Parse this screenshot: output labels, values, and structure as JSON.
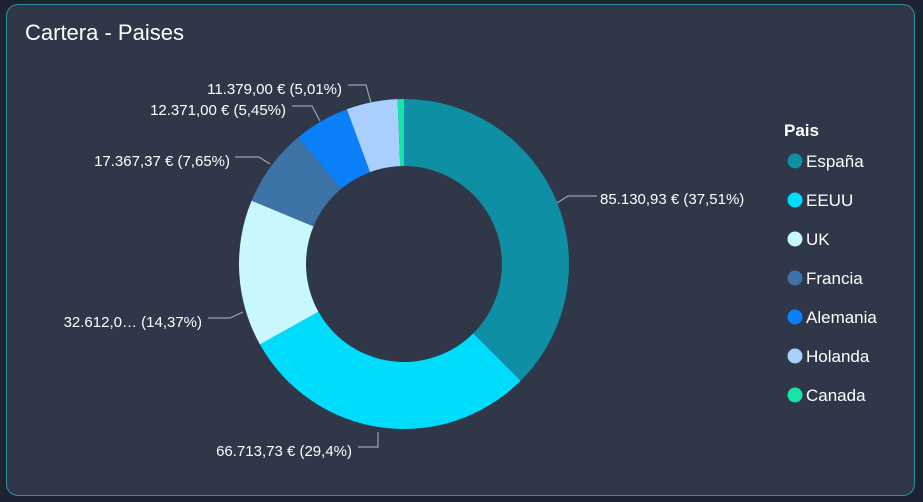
{
  "title": "Cartera - Paises",
  "chart_data": {
    "type": "pie",
    "subtype": "donut",
    "title": "Cartera - Paises",
    "legend": {
      "title": "Pais",
      "position": "right"
    },
    "slices": [
      {
        "name": "España",
        "value": 85130.93,
        "percent": 37.51,
        "label": "85.130,93 € (37,51%)",
        "color": "#0e8fa3"
      },
      {
        "name": "EEUU",
        "value": 66713.73,
        "percent": 29.4,
        "label": "66.713,73 € (29,4%)",
        "color": "#00ddfc"
      },
      {
        "name": "UK",
        "value": 32612.0,
        "percent": 14.37,
        "label": "32.612,0… (14,37%)",
        "color": "#c8f7fe"
      },
      {
        "name": "Francia",
        "value": 17367.37,
        "percent": 7.65,
        "label": "17.367,37 € (7,65%)",
        "color": "#3e73a8"
      },
      {
        "name": "Alemania",
        "value": 12371.0,
        "percent": 5.45,
        "label": "12.371,00 € (5,45%)",
        "color": "#0a80fb"
      },
      {
        "name": "Holanda",
        "value": 11379.0,
        "percent": 5.01,
        "label": "11.379,00 € (5,01%)",
        "color": "#a8cffd"
      },
      {
        "name": "Canada",
        "value": 1400.0,
        "percent": 0.62,
        "label": "",
        "color": "#14e5a6"
      }
    ]
  }
}
